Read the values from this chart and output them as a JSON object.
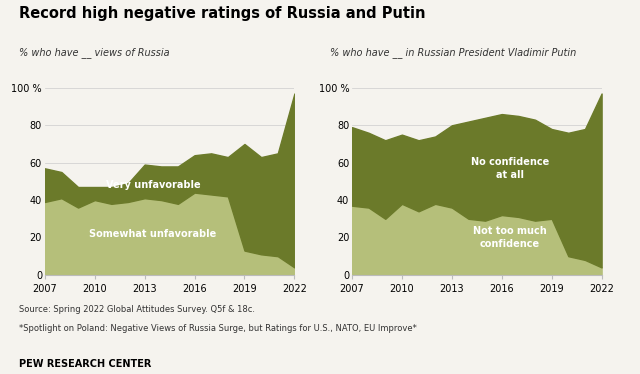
{
  "title": "Record high negative ratings of Russia and Putin",
  "left_subtitle": "% who have __ views of Russia",
  "right_subtitle": "% who have __ in Russian President Vladimir Putin",
  "source": "Source: Spring 2022 Global Attitudes Survey. Q5f & 18c.",
  "note": "*Spotlight on Poland: Negative Views of Russia Surge, but Ratings for U.S., NATO, EU Improve*",
  "branding": "PEW RESEARCH CENTER",
  "left_years": [
    2007,
    2008,
    2009,
    2010,
    2011,
    2012,
    2013,
    2014,
    2015,
    2016,
    2017,
    2018,
    2019,
    2020,
    2021,
    2022
  ],
  "left_somewhat": [
    39,
    41,
    36,
    40,
    38,
    39,
    41,
    40,
    38,
    44,
    43,
    42,
    13,
    11,
    10,
    4
  ],
  "left_total": [
    57,
    55,
    47,
    47,
    47,
    49,
    59,
    58,
    58,
    64,
    65,
    63,
    70,
    63,
    65,
    97
  ],
  "right_years": [
    2007,
    2008,
    2009,
    2010,
    2011,
    2012,
    2013,
    2014,
    2015,
    2016,
    2017,
    2018,
    2019,
    2020,
    2021,
    2022
  ],
  "right_nottoo": [
    37,
    36,
    30,
    38,
    34,
    38,
    36,
    30,
    29,
    32,
    31,
    29,
    30,
    10,
    8,
    4
  ],
  "right_total": [
    79,
    76,
    72,
    75,
    72,
    74,
    80,
    82,
    84,
    86,
    85,
    83,
    78,
    76,
    78,
    97
  ],
  "color_dark": "#6b7a2a",
  "color_light": "#b5bf7a",
  "background": "#f5f3ee",
  "ylim": [
    0,
    100
  ],
  "yticks": [
    0,
    20,
    40,
    60,
    80,
    100
  ]
}
